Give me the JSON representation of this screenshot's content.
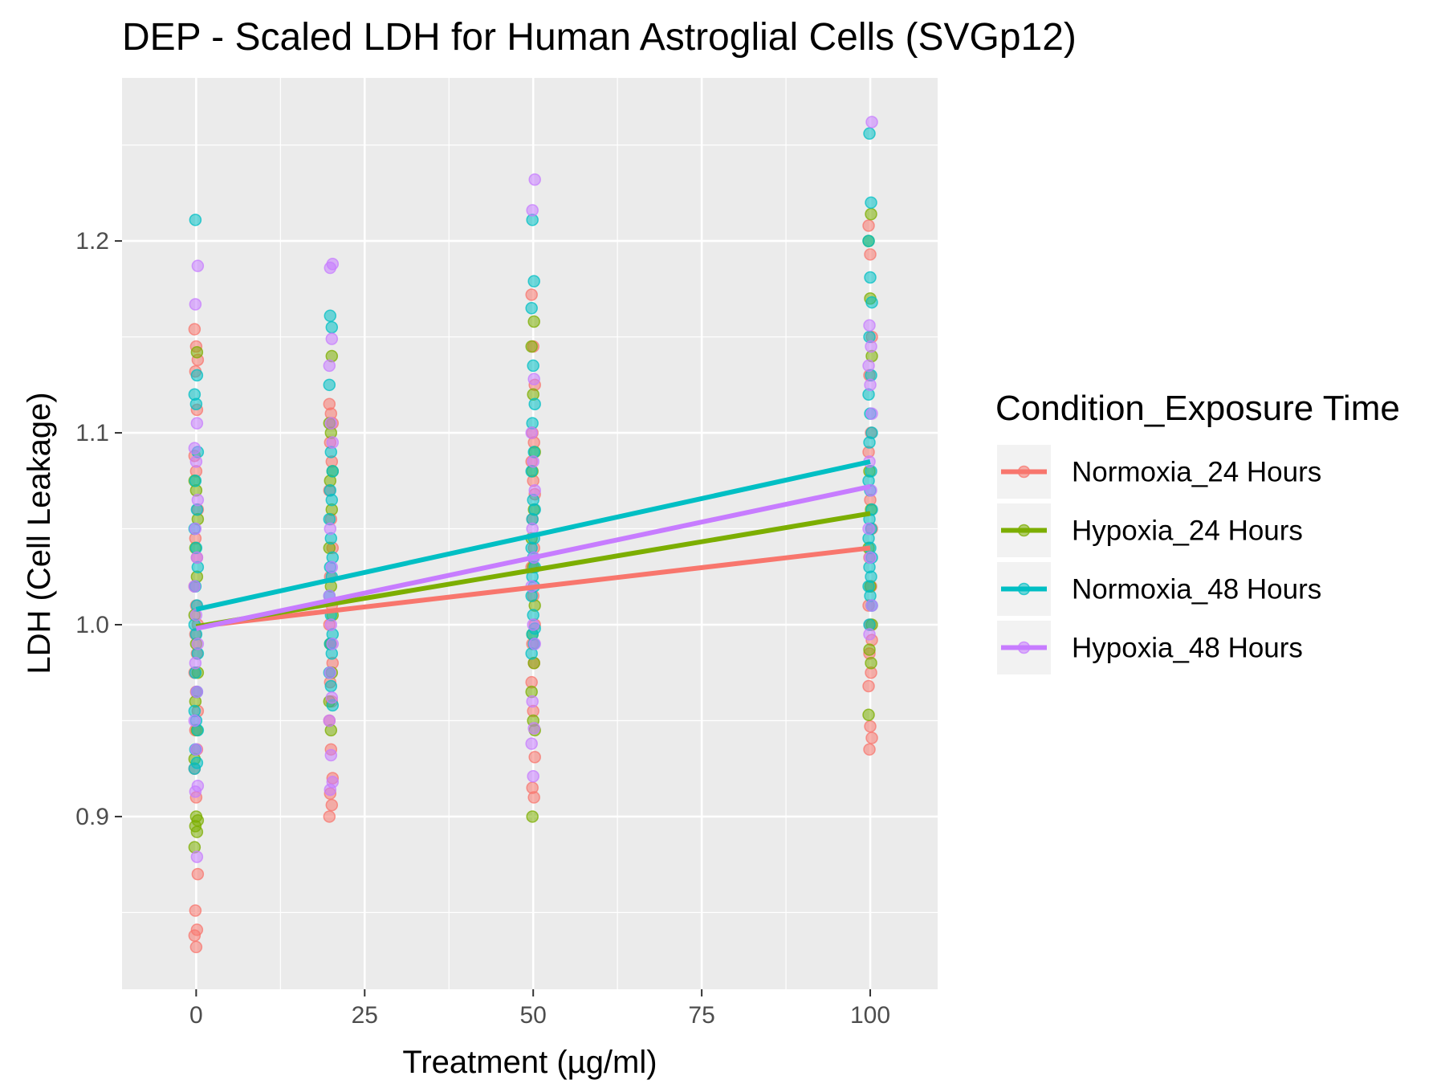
{
  "chart_data": {
    "type": "scatter",
    "title": "DEP - Scaled LDH for Human Astroglial Cells (SVGp12)",
    "xlabel": "Treatment (µg/ml)",
    "ylabel": "LDH (Cell Leakage)",
    "xlim": [
      -11,
      110
    ],
    "ylim": [
      0.81,
      1.285
    ],
    "x_ticks": [
      0,
      25,
      50,
      75,
      100
    ],
    "x_tick_labels": [
      "0",
      "25",
      "50",
      "75",
      "100"
    ],
    "y_ticks": [
      0.9,
      1.0,
      1.1,
      1.2
    ],
    "y_tick_labels": [
      "0.9",
      "1.0",
      "1.1",
      "1.2"
    ],
    "grid": true,
    "legend": {
      "title": "Condition_Exposure Time",
      "position": "right"
    },
    "series": [
      {
        "name": "Normoxia_24 Hours",
        "color": "#F8766D",
        "fit": {
          "x": [
            0,
            100
          ],
          "y": [
            0.999,
            1.04
          ]
        },
        "points": {
          "0": [
            1.154,
            1.145,
            1.138,
            1.132,
            1.112,
            1.088,
            1.08,
            1.06,
            1.045,
            1.035,
            1.02,
            1.01,
            1.0,
            0.995,
            0.985,
            0.975,
            0.965,
            0.955,
            0.945,
            0.935,
            0.925,
            0.91,
            0.87,
            0.851,
            0.841,
            0.838,
            0.832
          ],
          "20": [
            1.115,
            1.11,
            1.105,
            1.095,
            1.085,
            1.07,
            1.055,
            1.04,
            1.025,
            1.01,
            1.0,
            0.99,
            0.98,
            0.97,
            0.96,
            0.95,
            0.935,
            0.92,
            0.912,
            0.906,
            0.9
          ],
          "50": [
            1.172,
            1.145,
            1.125,
            1.1,
            1.095,
            1.085,
            1.075,
            1.068,
            1.055,
            1.04,
            1.03,
            1.015,
            1.0,
            0.99,
            0.98,
            0.97,
            0.955,
            0.931,
            0.915,
            0.91
          ],
          "100": [
            1.208,
            1.193,
            1.15,
            1.13,
            1.1,
            1.09,
            1.065,
            1.05,
            1.035,
            1.02,
            1.01,
            1.0,
            0.992,
            0.985,
            0.975,
            0.968,
            0.947,
            0.941,
            0.935
          ]
        }
      },
      {
        "name": "Hypoxia_24 Hours",
        "color": "#7CAE00",
        "fit": {
          "x": [
            0,
            100
          ],
          "y": [
            0.999,
            1.058
          ]
        },
        "points": {
          "0": [
            1.142,
            1.075,
            1.07,
            1.055,
            1.04,
            1.025,
            1.005,
            0.99,
            0.975,
            0.96,
            0.945,
            0.93,
            0.9,
            0.898,
            0.895,
            0.892,
            0.884
          ],
          "20": [
            1.14,
            1.105,
            1.1,
            1.08,
            1.075,
            1.06,
            1.04,
            1.02,
            1.005,
            0.99,
            0.975,
            0.96,
            0.945
          ],
          "50": [
            1.158,
            1.145,
            1.12,
            1.09,
            1.08,
            1.06,
            1.045,
            1.03,
            1.01,
            0.995,
            0.98,
            0.965,
            0.95,
            0.945,
            0.9
          ],
          "100": [
            1.214,
            1.2,
            1.17,
            1.14,
            1.08,
            1.06,
            1.04,
            1.02,
            1.0,
            0.987,
            0.98,
            0.953
          ]
        }
      },
      {
        "name": "Normoxia_48 Hours",
        "color": "#00BFC4",
        "fit": {
          "x": [
            0,
            100
          ],
          "y": [
            1.008,
            1.085
          ]
        },
        "points": {
          "0": [
            1.211,
            1.13,
            1.12,
            1.115,
            1.09,
            1.075,
            1.06,
            1.05,
            1.04,
            1.03,
            1.02,
            1.01,
            1.0,
            0.995,
            0.985,
            0.975,
            0.965,
            0.955,
            0.95,
            0.945,
            0.935,
            0.928,
            0.925
          ],
          "20": [
            1.161,
            1.155,
            1.125,
            1.09,
            1.08,
            1.07,
            1.065,
            1.055,
            1.045,
            1.035,
            1.03,
            1.025,
            1.015,
            1.005,
            0.995,
            0.99,
            0.985,
            0.975,
            0.968,
            0.958
          ],
          "50": [
            1.211,
            1.179,
            1.165,
            1.135,
            1.115,
            1.105,
            1.09,
            1.08,
            1.065,
            1.06,
            1.055,
            1.045,
            1.04,
            1.035,
            1.03,
            1.025,
            1.02,
            1.015,
            1.005,
            0.998,
            0.995,
            0.99,
            0.985
          ],
          "100": [
            1.256,
            1.22,
            1.2,
            1.181,
            1.168,
            1.15,
            1.13,
            1.12,
            1.11,
            1.1,
            1.095,
            1.08,
            1.075,
            1.07,
            1.06,
            1.055,
            1.05,
            1.045,
            1.04,
            1.035,
            1.03,
            1.025,
            1.02,
            1.015,
            1.01,
            1.0
          ]
        }
      },
      {
        "name": "Hypoxia_48 Hours",
        "color": "#C77CFF",
        "fit": {
          "x": [
            0,
            100
          ],
          "y": [
            0.998,
            1.072
          ]
        },
        "points": {
          "0": [
            1.187,
            1.167,
            1.105,
            1.092,
            1.085,
            1.065,
            1.05,
            1.035,
            1.02,
            1.005,
            0.99,
            0.98,
            0.965,
            0.95,
            0.935,
            0.916,
            0.913,
            0.879
          ],
          "20": [
            1.188,
            1.186,
            1.149,
            1.135,
            1.105,
            1.095,
            1.05,
            1.03,
            1.015,
            1.0,
            0.99,
            0.975,
            0.962,
            0.95,
            0.932,
            0.918,
            0.914
          ],
          "50": [
            1.232,
            1.216,
            1.128,
            1.1,
            1.085,
            1.07,
            1.05,
            1.035,
            1.02,
            1.0,
            0.99,
            0.96,
            0.946,
            0.938,
            0.921
          ],
          "100": [
            1.262,
            1.156,
            1.145,
            1.135,
            1.125,
            1.11,
            1.085,
            1.07,
            1.05,
            1.035,
            1.01,
            0.995
          ]
        }
      }
    ]
  }
}
